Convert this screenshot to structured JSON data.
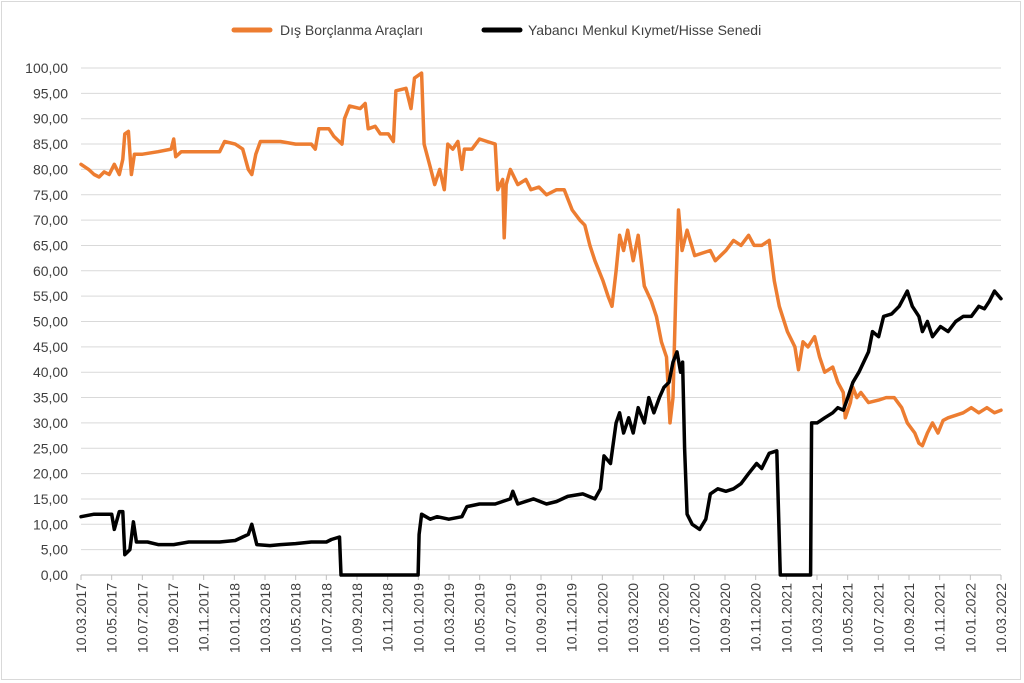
{
  "chart_data": {
    "type": "line",
    "title": "",
    "xlabel": "",
    "ylabel": "",
    "ylim": [
      0,
      100
    ],
    "y_ticks": [
      "0,00",
      "5,00",
      "10,00",
      "15,00",
      "20,00",
      "25,00",
      "30,00",
      "35,00",
      "40,00",
      "45,00",
      "50,00",
      "55,00",
      "60,00",
      "65,00",
      "70,00",
      "75,00",
      "80,00",
      "85,00",
      "90,00",
      "95,00",
      "100,00"
    ],
    "x_ticks": [
      "10.03.2017",
      "10.05.2017",
      "10.07.2017",
      "10.09.2017",
      "10.11.2017",
      "10.01.2018",
      "10.03.2018",
      "10.05.2018",
      "10.07.2018",
      "10.09.2018",
      "10.11.2018",
      "10.01.2019",
      "10.03.2019",
      "10.05.2019",
      "10.07.2019",
      "10.09.2019",
      "10.11.2019",
      "10.01.2020",
      "10.03.2020",
      "10.05.2020",
      "10.07.2020",
      "10.09.2020",
      "10.11.2020",
      "10.01.2021",
      "10.03.2021",
      "10.05.2021",
      "10.07.2021",
      "10.09.2021",
      "10.11.2021",
      "10.01.2022",
      "10.03.2022"
    ],
    "x_range": [
      "2017-03-10",
      "2022-03-10"
    ],
    "grid": true,
    "legend_position": "top",
    "series": [
      {
        "name": "Dış Borçlanma Araçları",
        "color": "#ED7D31",
        "points": [
          [
            "2017-03-10",
            81
          ],
          [
            "2017-03-25",
            80
          ],
          [
            "2017-04-05",
            79
          ],
          [
            "2017-04-15",
            78.5
          ],
          [
            "2017-04-25",
            79.5
          ],
          [
            "2017-05-05",
            79
          ],
          [
            "2017-05-15",
            81
          ],
          [
            "2017-05-25",
            79
          ],
          [
            "2017-06-01",
            82
          ],
          [
            "2017-06-05",
            87
          ],
          [
            "2017-06-12",
            87.5
          ],
          [
            "2017-06-18",
            79
          ],
          [
            "2017-06-24",
            83
          ],
          [
            "2017-07-10",
            83
          ],
          [
            "2017-08-10",
            83.5
          ],
          [
            "2017-09-05",
            84
          ],
          [
            "2017-09-10",
            86
          ],
          [
            "2017-09-14",
            82.5
          ],
          [
            "2017-09-25",
            83.5
          ],
          [
            "2017-11-10",
            83.5
          ],
          [
            "2017-12-10",
            83.5
          ],
          [
            "2017-12-20",
            85.5
          ],
          [
            "2018-01-10",
            85
          ],
          [
            "2018-01-25",
            84
          ],
          [
            "2018-02-05",
            80
          ],
          [
            "2018-02-12",
            79
          ],
          [
            "2018-02-20",
            83
          ],
          [
            "2018-03-01",
            85.5
          ],
          [
            "2018-04-10",
            85.5
          ],
          [
            "2018-05-10",
            85
          ],
          [
            "2018-06-10",
            85
          ],
          [
            "2018-06-18",
            84
          ],
          [
            "2018-06-25",
            88
          ],
          [
            "2018-07-15",
            88
          ],
          [
            "2018-07-25",
            86.5
          ],
          [
            "2018-08-10",
            85
          ],
          [
            "2018-08-15",
            90
          ],
          [
            "2018-08-25",
            92.5
          ],
          [
            "2018-09-15",
            92
          ],
          [
            "2018-09-25",
            93
          ],
          [
            "2018-10-01",
            88
          ],
          [
            "2018-10-15",
            88.5
          ],
          [
            "2018-10-25",
            87
          ],
          [
            "2018-11-10",
            87
          ],
          [
            "2018-11-20",
            85.5
          ],
          [
            "2018-11-25",
            95.5
          ],
          [
            "2018-12-15",
            96
          ],
          [
            "2018-12-25",
            92
          ],
          [
            "2019-01-01",
            98
          ],
          [
            "2019-01-15",
            99
          ],
          [
            "2019-01-20",
            85
          ],
          [
            "2019-02-01",
            80.5
          ],
          [
            "2019-02-10",
            77
          ],
          [
            "2019-02-20",
            80
          ],
          [
            "2019-03-01",
            76
          ],
          [
            "2019-03-08",
            85
          ],
          [
            "2019-03-18",
            84
          ],
          [
            "2019-03-28",
            85.5
          ],
          [
            "2019-04-05",
            80
          ],
          [
            "2019-04-10",
            84
          ],
          [
            "2019-04-25",
            84
          ],
          [
            "2019-05-10",
            86
          ],
          [
            "2019-05-25",
            85.5
          ],
          [
            "2019-06-10",
            85
          ],
          [
            "2019-06-15",
            76
          ],
          [
            "2019-06-25",
            78
          ],
          [
            "2019-06-28",
            66.5
          ],
          [
            "2019-07-02",
            77
          ],
          [
            "2019-07-10",
            80
          ],
          [
            "2019-07-25",
            77
          ],
          [
            "2019-08-10",
            78
          ],
          [
            "2019-08-20",
            76
          ],
          [
            "2019-09-05",
            76.5
          ],
          [
            "2019-09-20",
            75
          ],
          [
            "2019-10-10",
            76
          ],
          [
            "2019-10-25",
            76
          ],
          [
            "2019-11-10",
            72
          ],
          [
            "2019-11-25",
            70
          ],
          [
            "2019-12-05",
            69
          ],
          [
            "2019-12-15",
            65
          ],
          [
            "2019-12-25",
            62
          ],
          [
            "2020-01-10",
            58
          ],
          [
            "2020-01-20",
            55
          ],
          [
            "2020-01-28",
            53
          ],
          [
            "2020-02-05",
            60
          ],
          [
            "2020-02-12",
            67
          ],
          [
            "2020-02-20",
            64
          ],
          [
            "2020-02-28",
            68
          ],
          [
            "2020-03-10",
            62
          ],
          [
            "2020-03-20",
            67
          ],
          [
            "2020-04-01",
            57
          ],
          [
            "2020-04-15",
            54
          ],
          [
            "2020-04-25",
            51
          ],
          [
            "2020-05-05",
            46
          ],
          [
            "2020-05-15",
            43
          ],
          [
            "2020-05-22",
            30
          ],
          [
            "2020-05-28",
            35
          ],
          [
            "2020-06-03",
            57
          ],
          [
            "2020-06-08",
            72
          ],
          [
            "2020-06-15",
            64
          ],
          [
            "2020-06-25",
            68
          ],
          [
            "2020-07-10",
            63
          ],
          [
            "2020-07-25",
            63.5
          ],
          [
            "2020-08-10",
            64
          ],
          [
            "2020-08-20",
            62
          ],
          [
            "2020-09-10",
            64
          ],
          [
            "2020-09-25",
            66
          ],
          [
            "2020-10-10",
            65
          ],
          [
            "2020-10-25",
            67
          ],
          [
            "2020-11-05",
            65
          ],
          [
            "2020-11-20",
            65
          ],
          [
            "2020-12-05",
            66
          ],
          [
            "2020-12-15",
            58
          ],
          [
            "2020-12-25",
            53
          ],
          [
            "2021-01-10",
            48
          ],
          [
            "2021-01-25",
            45
          ],
          [
            "2021-02-01",
            40.5
          ],
          [
            "2021-02-10",
            46
          ],
          [
            "2021-02-20",
            45
          ],
          [
            "2021-03-05",
            47
          ],
          [
            "2021-03-15",
            43
          ],
          [
            "2021-03-25",
            40
          ],
          [
            "2021-04-10",
            41
          ],
          [
            "2021-04-20",
            38
          ],
          [
            "2021-05-01",
            36
          ],
          [
            "2021-05-05",
            31
          ],
          [
            "2021-05-15",
            34
          ],
          [
            "2021-05-20",
            37
          ],
          [
            "2021-05-28",
            35
          ],
          [
            "2021-06-05",
            36
          ],
          [
            "2021-06-20",
            34
          ],
          [
            "2021-07-10",
            34.5
          ],
          [
            "2021-07-25",
            35
          ],
          [
            "2021-08-10",
            35
          ],
          [
            "2021-08-25",
            33
          ],
          [
            "2021-09-05",
            30
          ],
          [
            "2021-09-20",
            28
          ],
          [
            "2021-09-28",
            26
          ],
          [
            "2021-10-05",
            25.5
          ],
          [
            "2021-10-15",
            28
          ],
          [
            "2021-10-25",
            30
          ],
          [
            "2021-11-05",
            28
          ],
          [
            "2021-11-15",
            30.5
          ],
          [
            "2021-11-25",
            31
          ],
          [
            "2021-12-10",
            31.5
          ],
          [
            "2021-12-25",
            32
          ],
          [
            "2022-01-10",
            33
          ],
          [
            "2022-01-25",
            32
          ],
          [
            "2022-02-10",
            33
          ],
          [
            "2022-02-25",
            32
          ],
          [
            "2022-03-10",
            32.5
          ]
        ]
      },
      {
        "name": "Yabancı Menkul Kıymet/Hisse Senedi",
        "color": "#000000",
        "points": [
          [
            "2017-03-10",
            11.5
          ],
          [
            "2017-04-05",
            12
          ],
          [
            "2017-05-10",
            12
          ],
          [
            "2017-05-15",
            9
          ],
          [
            "2017-05-25",
            12.5
          ],
          [
            "2017-06-01",
            12.5
          ],
          [
            "2017-06-05",
            4
          ],
          [
            "2017-06-15",
            5
          ],
          [
            "2017-06-22",
            10.5
          ],
          [
            "2017-06-28",
            6.5
          ],
          [
            "2017-07-20",
            6.5
          ],
          [
            "2017-08-10",
            6
          ],
          [
            "2017-09-10",
            6
          ],
          [
            "2017-10-10",
            6.5
          ],
          [
            "2017-11-10",
            6.5
          ],
          [
            "2017-12-10",
            6.5
          ],
          [
            "2018-01-10",
            6.8
          ],
          [
            "2018-01-25",
            7.5
          ],
          [
            "2018-02-05",
            8
          ],
          [
            "2018-02-12",
            10
          ],
          [
            "2018-02-22",
            6
          ],
          [
            "2018-03-20",
            5.8
          ],
          [
            "2018-04-10",
            6
          ],
          [
            "2018-05-10",
            6.2
          ],
          [
            "2018-06-10",
            6.5
          ],
          [
            "2018-07-10",
            6.5
          ],
          [
            "2018-07-20",
            7
          ],
          [
            "2018-08-05",
            7.5
          ],
          [
            "2018-08-08",
            0
          ],
          [
            "2018-12-10",
            0
          ],
          [
            "2019-01-08",
            0
          ],
          [
            "2019-01-10",
            8
          ],
          [
            "2019-01-15",
            12
          ],
          [
            "2019-02-01",
            11
          ],
          [
            "2019-02-15",
            11.5
          ],
          [
            "2019-03-10",
            11
          ],
          [
            "2019-04-05",
            11.5
          ],
          [
            "2019-04-15",
            13.5
          ],
          [
            "2019-05-10",
            14
          ],
          [
            "2019-06-10",
            14
          ],
          [
            "2019-07-10",
            15
          ],
          [
            "2019-07-15",
            16.5
          ],
          [
            "2019-07-25",
            14
          ],
          [
            "2019-08-25",
            15
          ],
          [
            "2019-09-20",
            14
          ],
          [
            "2019-10-10",
            14.5
          ],
          [
            "2019-11-01",
            15.5
          ],
          [
            "2019-12-01",
            16
          ],
          [
            "2019-12-25",
            15
          ],
          [
            "2020-01-05",
            17
          ],
          [
            "2020-01-12",
            23.5
          ],
          [
            "2020-01-25",
            22
          ],
          [
            "2020-02-05",
            30
          ],
          [
            "2020-02-12",
            32
          ],
          [
            "2020-02-20",
            28
          ],
          [
            "2020-03-01",
            31
          ],
          [
            "2020-03-10",
            28
          ],
          [
            "2020-03-20",
            33
          ],
          [
            "2020-04-01",
            30
          ],
          [
            "2020-04-10",
            35
          ],
          [
            "2020-04-20",
            32
          ],
          [
            "2020-05-01",
            35
          ],
          [
            "2020-05-10",
            37
          ],
          [
            "2020-05-20",
            38
          ],
          [
            "2020-05-28",
            42
          ],
          [
            "2020-06-05",
            44
          ],
          [
            "2020-06-12",
            40
          ],
          [
            "2020-06-16",
            42
          ],
          [
            "2020-06-20",
            25
          ],
          [
            "2020-06-25",
            12
          ],
          [
            "2020-07-05",
            10
          ],
          [
            "2020-07-20",
            9
          ],
          [
            "2020-08-01",
            11
          ],
          [
            "2020-08-10",
            16
          ],
          [
            "2020-08-25",
            17
          ],
          [
            "2020-09-10",
            16.5
          ],
          [
            "2020-09-25",
            17
          ],
          [
            "2020-10-10",
            18
          ],
          [
            "2020-10-25",
            20
          ],
          [
            "2020-11-10",
            22
          ],
          [
            "2020-11-20",
            21
          ],
          [
            "2020-12-05",
            24
          ],
          [
            "2020-12-20",
            24.5
          ],
          [
            "2020-12-27",
            0
          ],
          [
            "2021-02-25",
            0
          ],
          [
            "2021-02-27",
            30
          ],
          [
            "2021-03-10",
            30
          ],
          [
            "2021-03-25",
            31
          ],
          [
            "2021-04-10",
            32
          ],
          [
            "2021-04-20",
            33
          ],
          [
            "2021-05-01",
            32.5
          ],
          [
            "2021-05-10",
            35
          ],
          [
            "2021-05-20",
            38
          ],
          [
            "2021-06-01",
            40
          ],
          [
            "2021-06-20",
            44
          ],
          [
            "2021-06-28",
            48
          ],
          [
            "2021-07-10",
            47
          ],
          [
            "2021-07-20",
            51
          ],
          [
            "2021-08-05",
            51.5
          ],
          [
            "2021-08-20",
            53
          ],
          [
            "2021-09-05",
            56
          ],
          [
            "2021-09-15",
            53
          ],
          [
            "2021-09-28",
            51
          ],
          [
            "2021-10-05",
            48
          ],
          [
            "2021-10-15",
            50
          ],
          [
            "2021-10-25",
            47
          ],
          [
            "2021-11-10",
            49
          ],
          [
            "2021-11-25",
            48
          ],
          [
            "2021-12-10",
            50
          ],
          [
            "2021-12-25",
            51
          ],
          [
            "2022-01-10",
            51
          ],
          [
            "2022-01-25",
            53
          ],
          [
            "2022-02-05",
            52.5
          ],
          [
            "2022-02-15",
            54
          ],
          [
            "2022-02-25",
            56
          ],
          [
            "2022-03-10",
            54.5
          ]
        ]
      }
    ]
  }
}
